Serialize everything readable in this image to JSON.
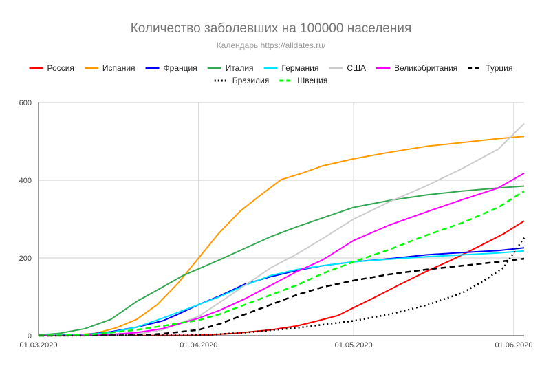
{
  "chart_data": {
    "type": "line",
    "title": "Количество заболевших на 100000 населения",
    "subtitle": "Календарь https://alldates.ru/",
    "xlabel": "",
    "ylabel": "",
    "x_range": [
      "2020-03-01",
      "2020-06-03"
    ],
    "ylim": [
      0,
      600
    ],
    "x_ticks": [
      {
        "date": "2020-03-01",
        "label": "01.03.2020"
      },
      {
        "date": "2020-04-01",
        "label": "01.04.2020"
      },
      {
        "date": "2020-05-01",
        "label": "01.05.2020"
      },
      {
        "date": "2020-06-01",
        "label": "01.06.2020"
      }
    ],
    "y_ticks": [
      0,
      200,
      400,
      600
    ],
    "grid": true,
    "legend_position": "top",
    "series": [
      {
        "name": "Россия",
        "color": "#ff0000",
        "dash": "solid",
        "points": [
          [
            "2020-03-01",
            0
          ],
          [
            "2020-03-15",
            0
          ],
          [
            "2020-04-01",
            1
          ],
          [
            "2020-04-08",
            6
          ],
          [
            "2020-04-15",
            15
          ],
          [
            "2020-04-20",
            25
          ],
          [
            "2020-04-24",
            38
          ],
          [
            "2020-04-28",
            52
          ],
          [
            "2020-05-01",
            72
          ],
          [
            "2020-05-05",
            98
          ],
          [
            "2020-05-10",
            132
          ],
          [
            "2020-05-15",
            165
          ],
          [
            "2020-05-20",
            195
          ],
          [
            "2020-05-25",
            228
          ],
          [
            "2020-05-30",
            262
          ],
          [
            "2020-06-03",
            295
          ]
        ]
      },
      {
        "name": "Испания",
        "color": "#ff9900",
        "dash": "solid",
        "points": [
          [
            "2020-03-01",
            0
          ],
          [
            "2020-03-08",
            2
          ],
          [
            "2020-03-12",
            6
          ],
          [
            "2020-03-16",
            20
          ],
          [
            "2020-03-20",
            42
          ],
          [
            "2020-03-24",
            80
          ],
          [
            "2020-03-28",
            135
          ],
          [
            "2020-04-01",
            200
          ],
          [
            "2020-04-05",
            265
          ],
          [
            "2020-04-09",
            320
          ],
          [
            "2020-04-13",
            362
          ],
          [
            "2020-04-17",
            402
          ],
          [
            "2020-04-21",
            418
          ],
          [
            "2020-04-25",
            437
          ],
          [
            "2020-05-01",
            455
          ],
          [
            "2020-05-08",
            472
          ],
          [
            "2020-05-15",
            487
          ],
          [
            "2020-05-22",
            497
          ],
          [
            "2020-05-29",
            507
          ],
          [
            "2020-06-03",
            513
          ]
        ]
      },
      {
        "name": "Франция",
        "color": "#0000ff",
        "dash": "solid",
        "points": [
          [
            "2020-03-01",
            0
          ],
          [
            "2020-03-10",
            3
          ],
          [
            "2020-03-15",
            10
          ],
          [
            "2020-03-20",
            22
          ],
          [
            "2020-03-25",
            38
          ],
          [
            "2020-03-28",
            55
          ],
          [
            "2020-04-01",
            80
          ],
          [
            "2020-04-05",
            102
          ],
          [
            "2020-04-10",
            133
          ],
          [
            "2020-04-15",
            152
          ],
          [
            "2020-04-20",
            168
          ],
          [
            "2020-04-25",
            180
          ],
          [
            "2020-05-01",
            190
          ],
          [
            "2020-05-08",
            198
          ],
          [
            "2020-05-15",
            208
          ],
          [
            "2020-05-22",
            214
          ],
          [
            "2020-05-29",
            219
          ],
          [
            "2020-06-03",
            226
          ]
        ]
      },
      {
        "name": "Италия",
        "color": "#34a853",
        "dash": "solid",
        "points": [
          [
            "2020-03-01",
            2
          ],
          [
            "2020-03-05",
            6
          ],
          [
            "2020-03-10",
            18
          ],
          [
            "2020-03-15",
            42
          ],
          [
            "2020-03-20",
            88
          ],
          [
            "2020-03-25",
            125
          ],
          [
            "2020-03-29",
            155
          ],
          [
            "2020-04-01",
            172
          ],
          [
            "2020-04-05",
            195
          ],
          [
            "2020-04-10",
            225
          ],
          [
            "2020-04-15",
            255
          ],
          [
            "2020-04-20",
            280
          ],
          [
            "2020-04-25",
            303
          ],
          [
            "2020-05-01",
            330
          ],
          [
            "2020-05-08",
            348
          ],
          [
            "2020-05-15",
            362
          ],
          [
            "2020-05-22",
            372
          ],
          [
            "2020-05-29",
            380
          ],
          [
            "2020-06-03",
            385
          ]
        ]
      },
      {
        "name": "Германия",
        "color": "#00e5ff",
        "dash": "solid",
        "points": [
          [
            "2020-03-01",
            0
          ],
          [
            "2020-03-10",
            3
          ],
          [
            "2020-03-15",
            8
          ],
          [
            "2020-03-20",
            22
          ],
          [
            "2020-03-25",
            45
          ],
          [
            "2020-03-30",
            70
          ],
          [
            "2020-04-01",
            80
          ],
          [
            "2020-04-05",
            100
          ],
          [
            "2020-04-10",
            130
          ],
          [
            "2020-04-15",
            155
          ],
          [
            "2020-04-20",
            170
          ],
          [
            "2020-04-25",
            180
          ],
          [
            "2020-05-01",
            190
          ],
          [
            "2020-05-08",
            197
          ],
          [
            "2020-05-15",
            203
          ],
          [
            "2020-05-22",
            208
          ],
          [
            "2020-05-29",
            213
          ],
          [
            "2020-06-03",
            218
          ]
        ]
      },
      {
        "name": "США",
        "color": "#cccccc",
        "dash": "solid",
        "points": [
          [
            "2020-03-01",
            0
          ],
          [
            "2020-03-15",
            1
          ],
          [
            "2020-03-20",
            4
          ],
          [
            "2020-03-25",
            15
          ],
          [
            "2020-04-01",
            50
          ],
          [
            "2020-04-05",
            85
          ],
          [
            "2020-04-10",
            130
          ],
          [
            "2020-04-15",
            175
          ],
          [
            "2020-04-20",
            210
          ],
          [
            "2020-04-25",
            250
          ],
          [
            "2020-05-01",
            300
          ],
          [
            "2020-05-08",
            345
          ],
          [
            "2020-05-15",
            385
          ],
          [
            "2020-05-22",
            430
          ],
          [
            "2020-05-29",
            480
          ],
          [
            "2020-06-03",
            546
          ]
        ]
      },
      {
        "name": "Великобритания",
        "color": "#ff00ff",
        "dash": "solid",
        "points": [
          [
            "2020-03-01",
            0
          ],
          [
            "2020-03-10",
            1
          ],
          [
            "2020-03-15",
            3
          ],
          [
            "2020-03-20",
            8
          ],
          [
            "2020-03-25",
            18
          ],
          [
            "2020-04-01",
            45
          ],
          [
            "2020-04-05",
            65
          ],
          [
            "2020-04-10",
            95
          ],
          [
            "2020-04-15",
            130
          ],
          [
            "2020-04-20",
            165
          ],
          [
            "2020-04-25",
            195
          ],
          [
            "2020-05-01",
            245
          ],
          [
            "2020-05-08",
            285
          ],
          [
            "2020-05-15",
            318
          ],
          [
            "2020-05-22",
            350
          ],
          [
            "2020-05-29",
            380
          ],
          [
            "2020-06-03",
            418
          ]
        ]
      },
      {
        "name": "Турция",
        "color": "#000000",
        "dash": "dashed",
        "points": [
          [
            "2020-03-01",
            0
          ],
          [
            "2020-03-20",
            1
          ],
          [
            "2020-03-25",
            5
          ],
          [
            "2020-04-01",
            15
          ],
          [
            "2020-04-05",
            30
          ],
          [
            "2020-04-10",
            55
          ],
          [
            "2020-04-15",
            80
          ],
          [
            "2020-04-20",
            105
          ],
          [
            "2020-04-25",
            125
          ],
          [
            "2020-05-01",
            142
          ],
          [
            "2020-05-08",
            158
          ],
          [
            "2020-05-15",
            170
          ],
          [
            "2020-05-22",
            180
          ],
          [
            "2020-05-29",
            190
          ],
          [
            "2020-06-03",
            198
          ]
        ]
      },
      {
        "name": "Бразилия",
        "color": "#000000",
        "dash": "dotted",
        "points": [
          [
            "2020-03-01",
            0
          ],
          [
            "2020-04-01",
            1
          ],
          [
            "2020-04-10",
            8
          ],
          [
            "2020-04-20",
            20
          ],
          [
            "2020-05-01",
            38
          ],
          [
            "2020-05-08",
            55
          ],
          [
            "2020-05-15",
            78
          ],
          [
            "2020-05-22",
            110
          ],
          [
            "2020-05-26",
            140
          ],
          [
            "2020-05-30",
            175
          ],
          [
            "2020-06-03",
            252
          ]
        ]
      },
      {
        "name": "Швеция",
        "color": "#00ff00",
        "dash": "dashed",
        "points": [
          [
            "2020-03-01",
            0
          ],
          [
            "2020-03-10",
            2
          ],
          [
            "2020-03-15",
            8
          ],
          [
            "2020-03-20",
            15
          ],
          [
            "2020-03-25",
            25
          ],
          [
            "2020-04-01",
            40
          ],
          [
            "2020-04-05",
            55
          ],
          [
            "2020-04-10",
            80
          ],
          [
            "2020-04-15",
            105
          ],
          [
            "2020-04-20",
            130
          ],
          [
            "2020-04-25",
            160
          ],
          [
            "2020-05-01",
            190
          ],
          [
            "2020-05-08",
            222
          ],
          [
            "2020-05-15",
            258
          ],
          [
            "2020-05-22",
            290
          ],
          [
            "2020-05-29",
            330
          ],
          [
            "2020-06-03",
            372
          ]
        ]
      }
    ]
  }
}
